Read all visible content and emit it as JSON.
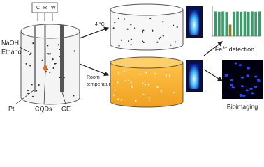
{
  "electrodes": {
    "labels": [
      "C",
      "R",
      "W"
    ]
  },
  "solution": {
    "line1": "NaOH",
    "line2": "Ethanol"
  },
  "parts": {
    "pt": "Pt",
    "cqds": "CQDs",
    "ge": "GE"
  },
  "arrows": {
    "cold": "4 °C",
    "room_line1": "Room",
    "room_line2": "temperature"
  },
  "detection": {
    "base": "Fe",
    "sup": "3+",
    "rest": " detection"
  },
  "imaging": {
    "label": "Bioimaging"
  },
  "inset_chart": {
    "type": "bar",
    "values": [
      0.97,
      0.96,
      0.97,
      0.95,
      0.45,
      0.96,
      0.97,
      0.96,
      0.97,
      0.96,
      0.97,
      0.96,
      0.97
    ],
    "colors": [
      "#3a9a6a",
      "#3a9a6a",
      "#3a9a6a",
      "#3a9a6a",
      "#8a7a2a",
      "#3a9a6a",
      "#3a9a6a",
      "#3a9a6a",
      "#3a9a6a",
      "#3a9a6a",
      "#3a9a6a",
      "#3a9a6a",
      "#3a9a6a"
    ],
    "ylim": [
      0,
      1.2
    ]
  }
}
